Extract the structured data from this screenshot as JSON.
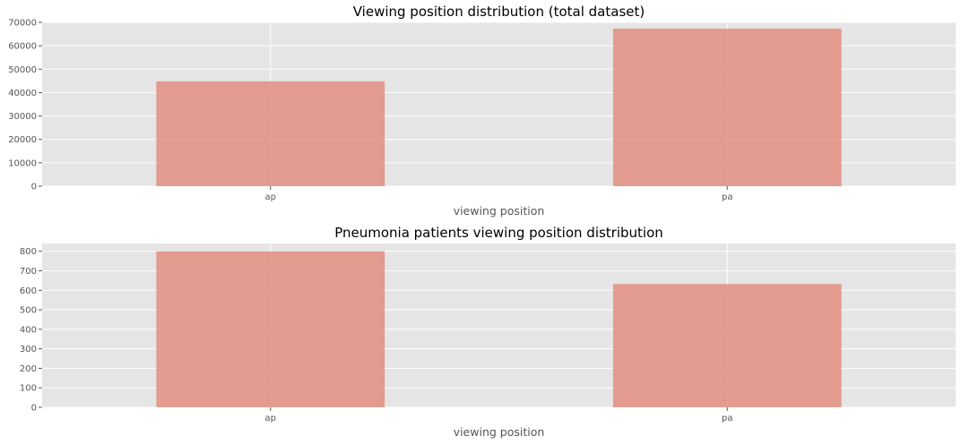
{
  "chart_data": [
    {
      "type": "bar",
      "title": "Viewing position distribution (total dataset)",
      "xlabel": "viewing position",
      "ylabel": "",
      "categories": [
        "ap",
        "pa"
      ],
      "values": [
        44800,
        67300
      ],
      "ylim": [
        0,
        70000
      ],
      "yticks": [
        0,
        10000,
        20000,
        30000,
        40000,
        50000,
        60000,
        70000
      ],
      "grid": true,
      "bar_color": "#e08a7a"
    },
    {
      "type": "bar",
      "title": "Pneumonia patients viewing position distribution",
      "xlabel": "viewing position",
      "ylabel": "",
      "categories": [
        "ap",
        "pa"
      ],
      "values": [
        800,
        632
      ],
      "ylim": [
        0,
        840
      ],
      "yticks": [
        0,
        100,
        200,
        300,
        400,
        500,
        600,
        700,
        800
      ],
      "grid": true,
      "bar_color": "#e08a7a"
    }
  ]
}
